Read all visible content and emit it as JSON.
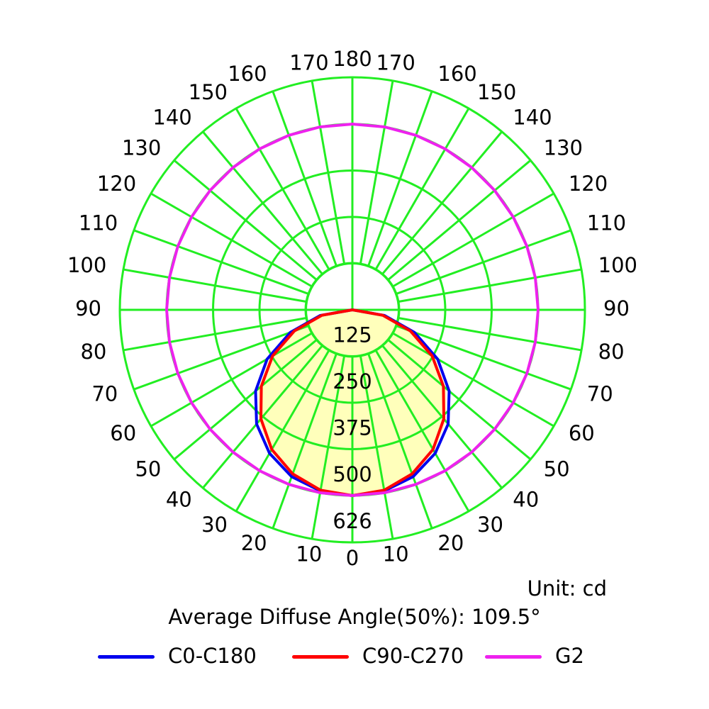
{
  "chart_data": {
    "type": "polar",
    "unit_text": "Unit: cd",
    "diffuse_text": "Average Diffuse Angle(50%): 109.5°",
    "radial_max": 626,
    "radial_ticks": [
      125,
      250,
      375,
      500,
      626
    ],
    "radial_tick_labels": [
      "125",
      "250",
      "375",
      "500",
      "626"
    ],
    "angle_ticks_left": [
      "0",
      "10",
      "20",
      "30",
      "40",
      "50",
      "60",
      "70",
      "80",
      "90",
      "100",
      "110",
      "120",
      "130",
      "140",
      "150",
      "160",
      "170",
      "180"
    ],
    "angle_ticks_right": [
      "10",
      "20",
      "30",
      "40",
      "50",
      "60",
      "70",
      "80",
      "90",
      "100",
      "110",
      "120",
      "130",
      "140",
      "150",
      "160",
      "170"
    ],
    "grid": true,
    "colors": {
      "grid": "#22ee22",
      "fill": "#ffffbb",
      "c0": "#0000ee",
      "c90": "#ff0000",
      "g2": "#ee22ee"
    },
    "series": [
      {
        "name": "C0-C180",
        "color": "#0000ee",
        "angles": [
          0,
          10,
          20,
          30,
          40,
          50,
          60,
          70,
          80,
          90
        ],
        "values": [
          500,
          495,
          478,
          446,
          401,
          340,
          265,
          178,
          88,
          0
        ]
      },
      {
        "name": "C90-C270",
        "color": "#ff0000",
        "angles": [
          0,
          10,
          20,
          30,
          40,
          50,
          60,
          70,
          80,
          90
        ],
        "values": [
          500,
          493,
          470,
          434,
          383,
          320,
          248,
          166,
          83,
          0
        ]
      },
      {
        "name": "G2",
        "color": "#ee22ee",
        "angles": [
          0,
          10,
          20,
          30,
          40,
          50,
          60,
          70,
          80,
          90,
          100,
          110,
          120,
          130,
          140,
          150,
          160,
          170,
          180
        ],
        "values": [
          500,
          500,
          500,
          500,
          500,
          500,
          500,
          500,
          500,
          500,
          500,
          500,
          500,
          500,
          500,
          500,
          500,
          500,
          500
        ]
      }
    ],
    "legend": [
      {
        "label": "C0-C180",
        "color": "#0000ee"
      },
      {
        "label": "C90-C270",
        "color": "#ff0000"
      },
      {
        "label": "G2",
        "color": "#ee22ee"
      }
    ],
    "legend_position": "bottom"
  }
}
